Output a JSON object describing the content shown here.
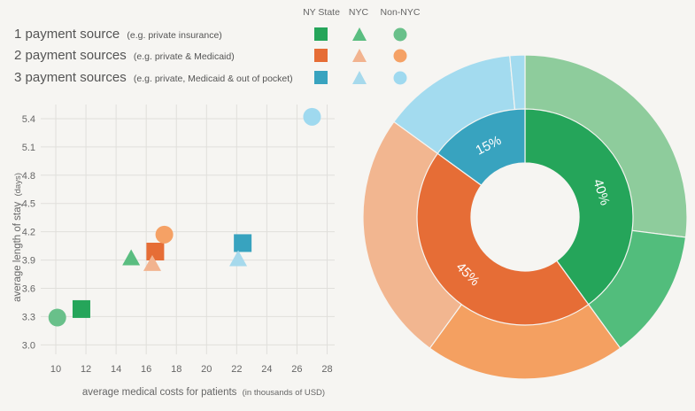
{
  "colors": {
    "green_state": "#25a55a",
    "green_nyc": "#5abd80",
    "green_nonnyc": "#69c08a",
    "orange_state": "#e66d36",
    "orange_nyc": "#f2b38f",
    "orange_nonnyc": "#f5a165",
    "blue_state": "#38a3bf",
    "blue_nyc": "#a6d9ec",
    "blue_nonnyc": "#9fd9ef",
    "grid": "#e0dfdb",
    "donut_outer": [
      "#8ecc9c",
      "#52bd7c",
      "#f4a061",
      "#f2b690",
      "#a3dbef",
      "#a3dbef"
    ]
  },
  "legend": {
    "columns": [
      "NY State",
      "NYC",
      "Non-NYC"
    ],
    "rows": [
      {
        "main": "1 payment source",
        "sub": "(e.g. private insurance)"
      },
      {
        "main": "2 payment sources",
        "sub": "(e.g. private & Medicaid)"
      },
      {
        "main": "3 payment sources",
        "sub": "(e.g. private, Medicaid & out of pocket)"
      }
    ]
  },
  "axes": {
    "ylabel_main": "average length of stay",
    "ylabel_unit": "(days)",
    "xlabel_main": "average medical costs for patients",
    "xlabel_unit": "(in thousands of USD)"
  },
  "chart_data": [
    {
      "type": "scatter",
      "xlim": [
        9,
        28.5
      ],
      "ylim": [
        2.9,
        5.55
      ],
      "x_ticks": [
        10,
        12,
        14,
        16,
        18,
        20,
        22,
        24,
        26,
        28
      ],
      "y_ticks": [
        3.0,
        3.3,
        3.6,
        3.9,
        4.2,
        4.5,
        4.8,
        5.1,
        5.4
      ],
      "grid": true,
      "points": [
        {
          "group": "1 payment source",
          "region": "NY State",
          "shape": "square",
          "x": 11.7,
          "y": 3.38
        },
        {
          "group": "1 payment source",
          "region": "Non-NYC",
          "shape": "circle",
          "x": 10.1,
          "y": 3.29
        },
        {
          "group": "2 payment sources",
          "region": "NY State",
          "shape": "square",
          "x": 16.6,
          "y": 3.99
        },
        {
          "group": "2 payment sources",
          "region": "NYC",
          "shape": "triangle",
          "x": 16.4,
          "y": 3.86
        },
        {
          "group": "2 payment sources",
          "region": "Non-NYC",
          "shape": "circle",
          "x": 17.2,
          "y": 4.17
        },
        {
          "group": "3 payment sources",
          "region": "NY State",
          "shape": "square",
          "x": 22.4,
          "y": 4.08
        },
        {
          "group": "3 payment sources",
          "region": "NYC",
          "shape": "triangle",
          "x": 22.1,
          "y": 3.91
        },
        {
          "group": "3 payment sources",
          "region": "Non-NYC",
          "shape": "circle",
          "x": 27.0,
          "y": 5.42
        },
        {
          "group": "1 payment source",
          "region": "NYC",
          "shape": "triangle",
          "x": 15.0,
          "y": 3.92
        }
      ]
    },
    {
      "type": "pie",
      "inner": [
        {
          "label": "40%",
          "value": 40
        },
        {
          "label": "45%",
          "value": 45
        },
        {
          "label": "15%",
          "value": 15
        }
      ],
      "outer": [
        {
          "value": 27
        },
        {
          "value": 13
        },
        {
          "value": 20
        },
        {
          "value": 25
        },
        {
          "value": 13.5
        },
        {
          "value": 1.5
        }
      ]
    }
  ]
}
